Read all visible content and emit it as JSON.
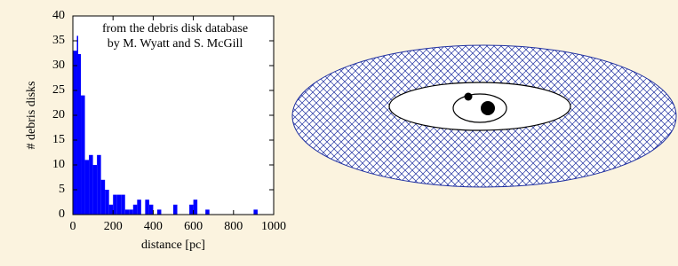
{
  "chart_data": {
    "type": "histogram",
    "annotation": [
      "from the debris disk database",
      "by M. Wyatt and S. McGill"
    ],
    "xlabel": "distance [pc]",
    "ylabel": "# debris disks",
    "bins": [
      0,
      20,
      40,
      60,
      80,
      100,
      120,
      140,
      160,
      180,
      200,
      220,
      240,
      260,
      280,
      300,
      320,
      340,
      360,
      380,
      400,
      420,
      440,
      460,
      480,
      500,
      520,
      540,
      560,
      580,
      600,
      620,
      640,
      660,
      680,
      700,
      720,
      740,
      760,
      780,
      800,
      820,
      840,
      860,
      880,
      900,
      920,
      940,
      960,
      980,
      1000
    ],
    "counts": [
      33,
      36,
      24,
      11,
      12,
      10,
      12,
      7,
      5,
      2,
      4,
      4,
      4,
      1,
      1,
      2,
      3,
      0,
      3,
      2,
      0,
      1,
      0,
      0,
      0,
      2,
      0,
      0,
      0,
      2,
      3,
      0,
      0,
      1,
      0,
      0,
      0,
      0,
      0,
      0,
      0,
      0,
      0,
      0,
      0,
      1,
      0,
      0,
      0,
      0
    ],
    "color": "#0000ff",
    "xlim": [
      0,
      1000
    ],
    "xticks": [
      0,
      200,
      400,
      600,
      800,
      1000
    ],
    "ylim": [
      0,
      40
    ],
    "yticks": [
      0,
      5,
      10,
      15,
      20,
      25,
      30,
      35,
      40
    ]
  }
}
